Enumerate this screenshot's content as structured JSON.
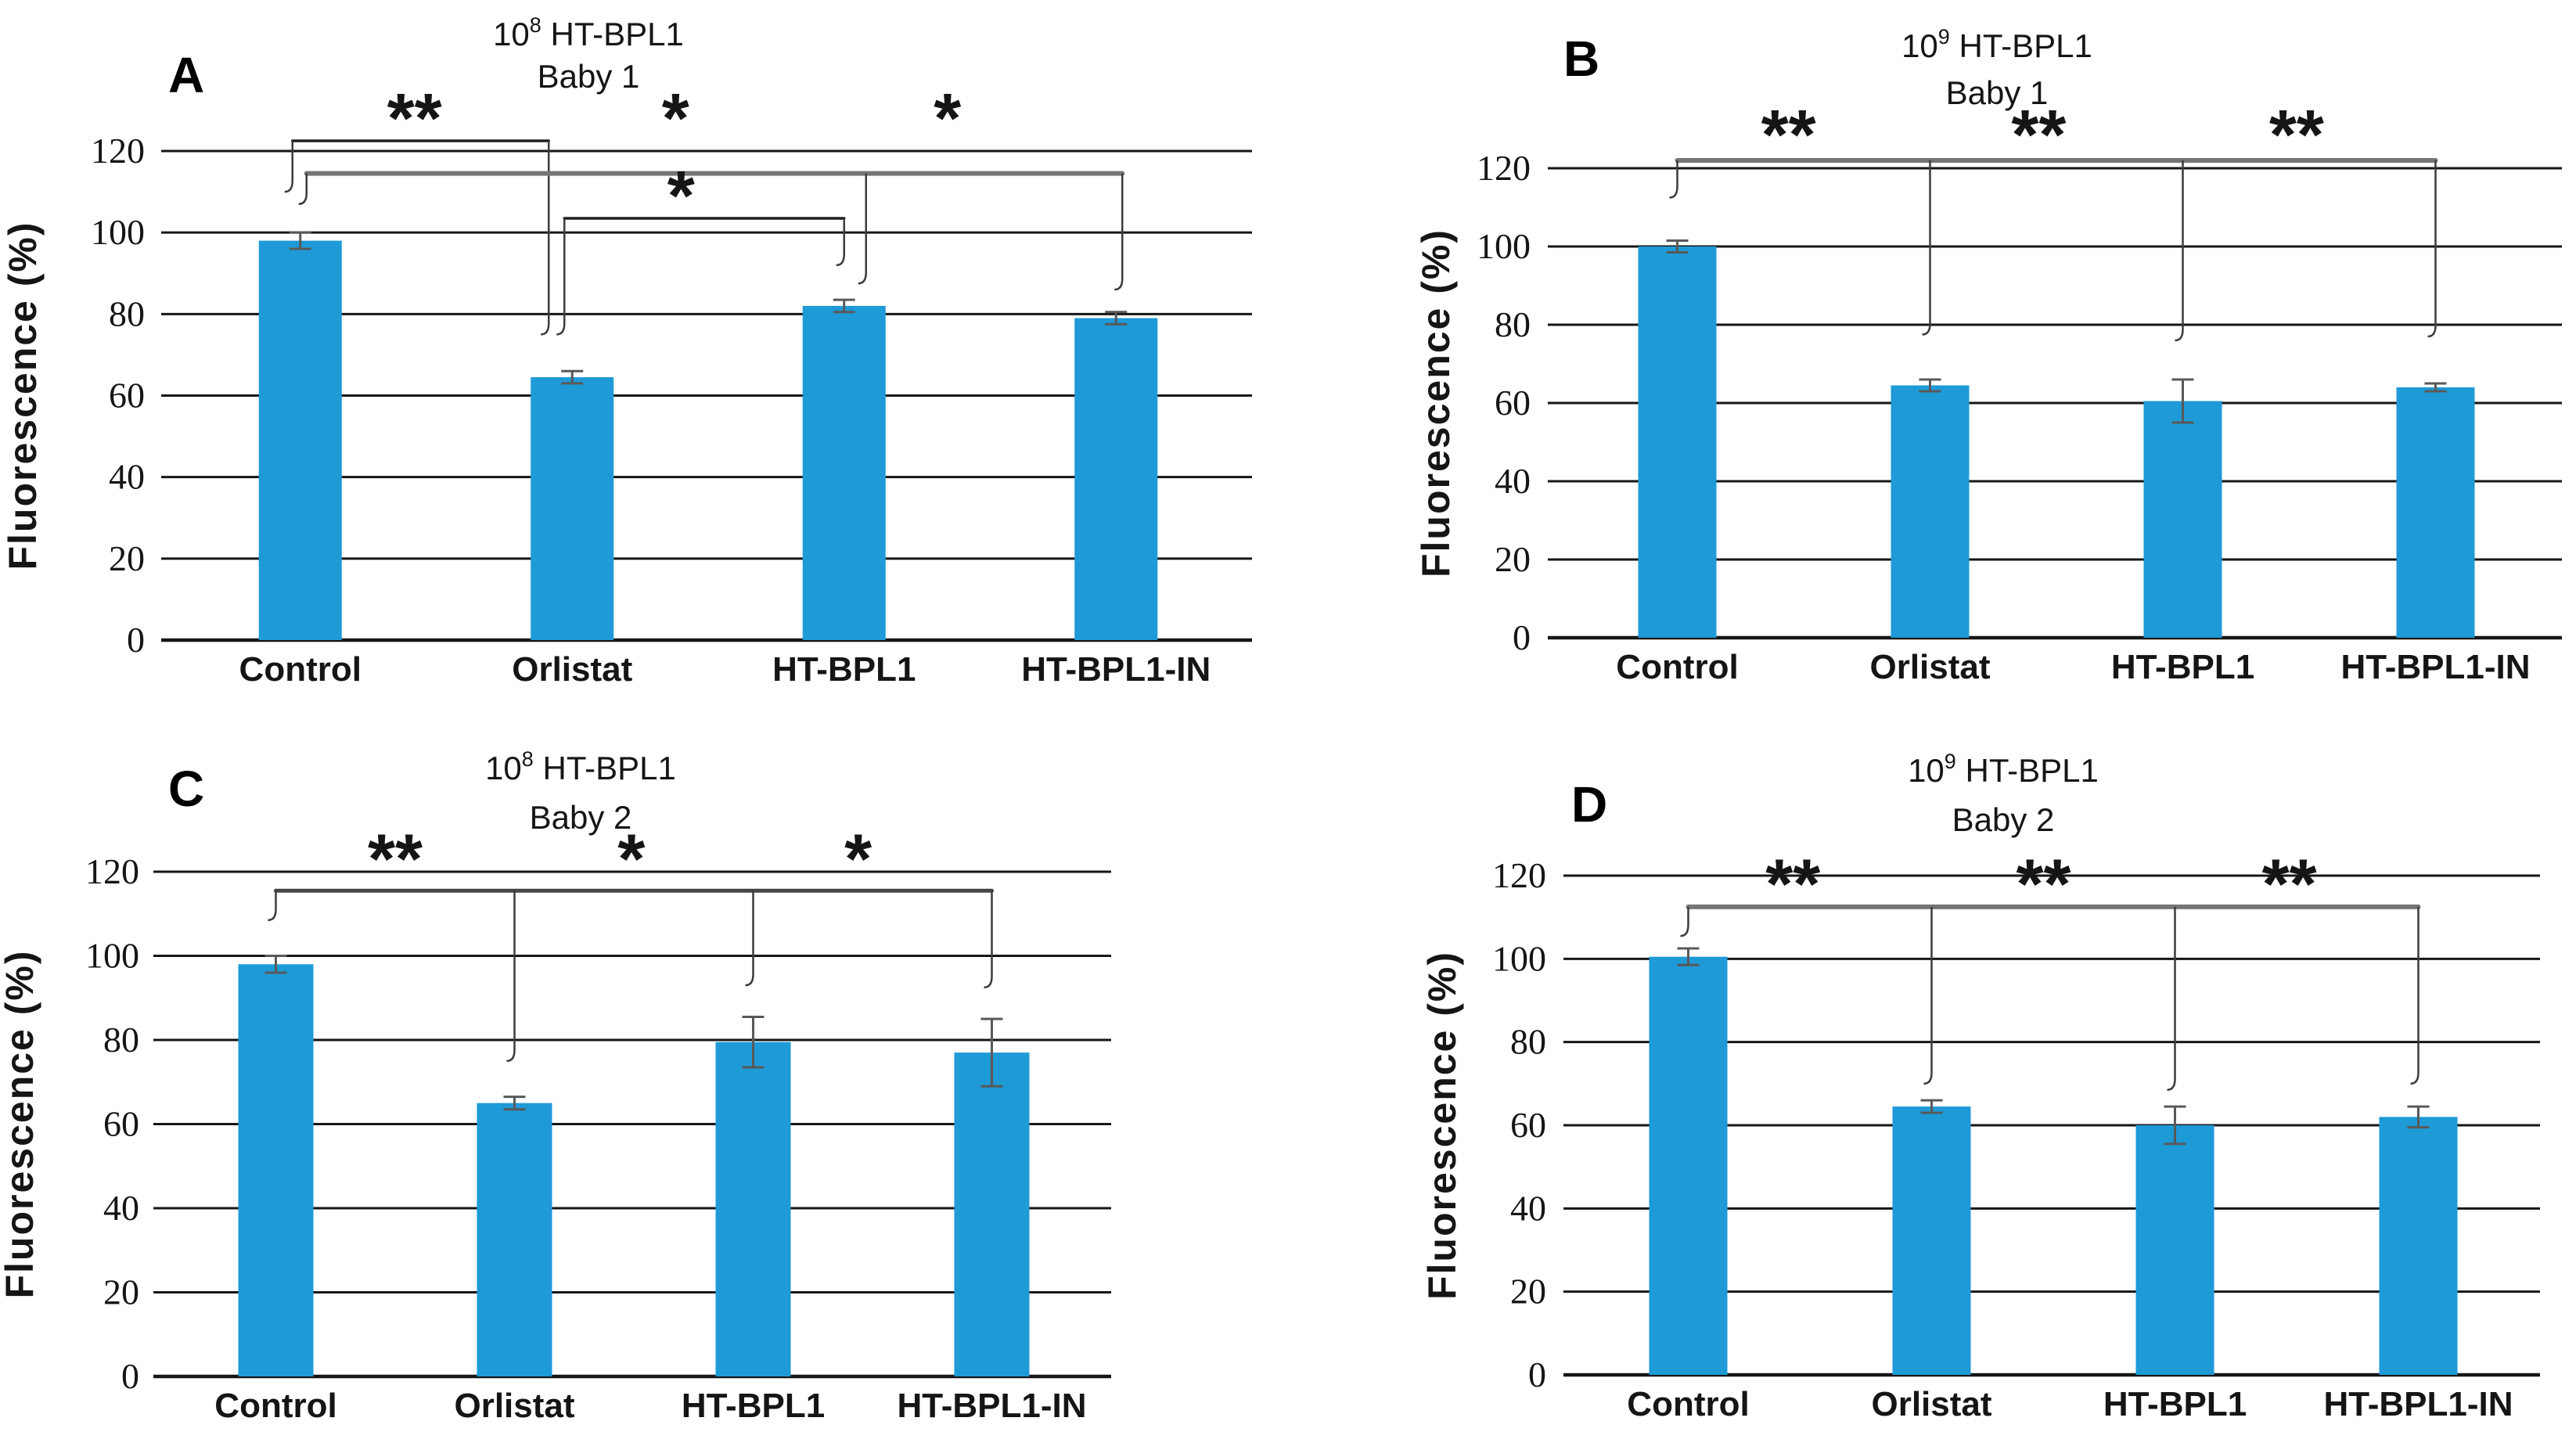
{
  "figure": {
    "name": "fluorescence-bar-figure",
    "background": "#ffffff",
    "bar_color": "#1e9ad7",
    "error_bar_color": "#595959",
    "grid_color": "#161616",
    "text_color": "#151515",
    "bracket_colors": {
      "dark": "#1f1f1f",
      "gray": "#757575",
      "mid": "#464646"
    }
  },
  "chart_data": [
    {
      "type": "bar",
      "panel_label": "A",
      "title": "10^8 HT-BPL1",
      "title_base": "10",
      "title_sup": "8",
      "title_rest": " HT-BPL1",
      "subtitle": "Baby 1",
      "ylabel": "Fluorescence (%)",
      "ylim": [
        0,
        120
      ],
      "yticks": [
        0,
        20,
        40,
        60,
        80,
        100,
        120
      ],
      "grid": "horizontal",
      "legend": "none",
      "categories": [
        "Control",
        "Orlistat",
        "HT-BPL1",
        "HT-BPL1-IN"
      ],
      "values": [
        98,
        64.5,
        82,
        79
      ],
      "errors": [
        2,
        1.5,
        1.5,
        1.5
      ],
      "significance": [
        {
          "label": "**",
          "x": 0.42,
          "y": 127.5
        },
        {
          "label": "*",
          "x": 1.38,
          "y": 127.5
        },
        {
          "label": "*",
          "x": 2.38,
          "y": 127.5
        },
        {
          "label": "*",
          "x": 1.4,
          "y": 108.5
        }
      ],
      "brackets": [
        {
          "y": 122.5,
          "x1": 0,
          "x2": 1,
          "dx1": -10,
          "dx2": -30,
          "color": "dark",
          "width": 3.5,
          "drops": [
            {
              "x": 0,
              "dx": -10,
              "to": 110
            },
            {
              "x": 1,
              "dx": -30,
              "to": 75
            }
          ]
        },
        {
          "y": 114.5,
          "x1": 0,
          "x2": 3,
          "dx1": 8,
          "dx2": 8,
          "color": "gray",
          "width": 6,
          "drops": [
            {
              "x": 0,
              "dx": 8,
              "to": 107
            },
            {
              "x": 2,
              "dx": 28,
              "to": 87.5
            },
            {
              "x": 3,
              "dx": 8,
              "to": 86
            }
          ]
        },
        {
          "y": 103.5,
          "x1": 1,
          "x2": 2,
          "dx1": -10,
          "dx2": 0,
          "color": "dark",
          "width": 3.5,
          "drops": [
            {
              "x": 1,
              "dx": -10,
              "to": 75
            },
            {
              "x": 2,
              "dx": 0,
              "to": 92
            }
          ]
        }
      ]
    },
    {
      "type": "bar",
      "panel_label": "B",
      "title": "10^9 HT-BPL1",
      "title_base": "10",
      "title_sup": "9",
      "title_rest": " HT-BPL1",
      "subtitle": "Baby 1",
      "ylabel": "Fluorescence (%)",
      "ylim": [
        0,
        120
      ],
      "yticks": [
        0,
        20,
        40,
        60,
        80,
        100,
        120
      ],
      "grid": "horizontal",
      "legend": "none",
      "categories": [
        "Control",
        "Orlistat",
        "HT-BPL1",
        "HT-BPL1-IN"
      ],
      "values": [
        100,
        64.5,
        60.5,
        64
      ],
      "errors": [
        1.5,
        1.5,
        5.5,
        1
      ],
      "significance": [
        {
          "label": "**",
          "x": 0.44,
          "y": 128
        },
        {
          "label": "**",
          "x": 1.43,
          "y": 128
        },
        {
          "label": "**",
          "x": 2.45,
          "y": 128
        }
      ],
      "brackets": [
        {
          "y": 122,
          "x1": 0,
          "x2": 3,
          "dx1": 0,
          "dx2": 0,
          "color": "gray",
          "width": 6,
          "drops": [
            {
              "x": 0,
              "dx": 0,
              "to": 112.5
            },
            {
              "x": 1,
              "dx": 0,
              "to": 77.5
            },
            {
              "x": 2,
              "dx": 0,
              "to": 76
            },
            {
              "x": 3,
              "dx": 0,
              "to": 77
            }
          ]
        }
      ]
    },
    {
      "type": "bar",
      "panel_label": "C",
      "title": "10^8 HT-BPL1",
      "title_base": "10",
      "title_sup": "8",
      "title_rest": " HT-BPL1",
      "subtitle": "Baby 2",
      "ylabel": "Fluorescence (%)",
      "ylim": [
        0,
        120
      ],
      "yticks": [
        0,
        20,
        40,
        60,
        80,
        100,
        120
      ],
      "grid": "horizontal",
      "legend": "none",
      "categories": [
        "Control",
        "Orlistat",
        "HT-BPL1",
        "HT-BPL1-IN"
      ],
      "values": [
        98,
        65,
        79.5,
        77
      ],
      "errors": [
        2,
        1.5,
        6,
        8
      ],
      "significance": [
        {
          "label": "**",
          "x": 0.5,
          "y": 122.5
        },
        {
          "label": "*",
          "x": 1.49,
          "y": 122.5
        },
        {
          "label": "*",
          "x": 2.44,
          "y": 122.5
        }
      ],
      "brackets": [
        {
          "y": 115.5,
          "x1": 0,
          "x2": 3,
          "dx1": 0,
          "dx2": 0,
          "color": "mid",
          "width": 5,
          "drops": [
            {
              "x": 0,
              "dx": 0,
              "to": 108.5
            },
            {
              "x": 1,
              "dx": 0,
              "to": 75
            },
            {
              "x": 2,
              "dx": 0,
              "to": 93
            },
            {
              "x": 3,
              "dx": 0,
              "to": 92.5
            }
          ]
        }
      ]
    },
    {
      "type": "bar",
      "panel_label": "D",
      "title": "10^9 HT-BPL1",
      "title_base": "10",
      "title_sup": "9",
      "title_rest": " HT-BPL1",
      "subtitle": "Baby 2",
      "ylabel": "Fluorescence (%)",
      "ylim": [
        0,
        120
      ],
      "yticks": [
        0,
        20,
        40,
        60,
        80,
        100,
        120
      ],
      "grid": "horizontal",
      "legend": "none",
      "categories": [
        "Control",
        "Orlistat",
        "HT-BPL1",
        "HT-BPL1-IN"
      ],
      "values": [
        100.5,
        64.5,
        60,
        62
      ],
      "errors": [
        2,
        1.5,
        4.5,
        2.5
      ],
      "significance": [
        {
          "label": "**",
          "x": 0.43,
          "y": 117.5
        },
        {
          "label": "**",
          "x": 1.46,
          "y": 117.5
        },
        {
          "label": "**",
          "x": 2.47,
          "y": 117.5
        }
      ],
      "brackets": [
        {
          "y": 112.5,
          "x1": 0,
          "x2": 3,
          "dx1": 0,
          "dx2": 0,
          "color": "gray",
          "width": 6,
          "drops": [
            {
              "x": 0,
              "dx": 0,
              "to": 105.5
            },
            {
              "x": 1,
              "dx": 0,
              "to": 70
            },
            {
              "x": 2,
              "dx": 0,
              "to": 68.5
            },
            {
              "x": 3,
              "dx": 0,
              "to": 70
            }
          ]
        }
      ]
    }
  ]
}
